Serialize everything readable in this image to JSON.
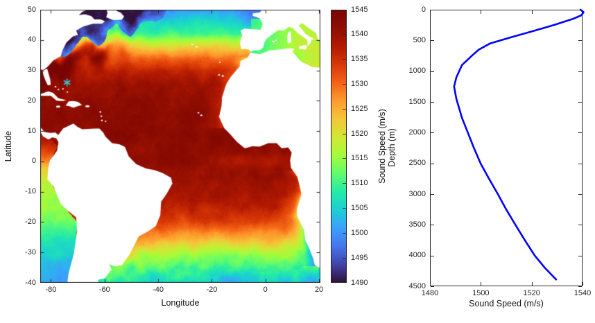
{
  "figure": {
    "background": "#ffffff",
    "axis_color": "#262626",
    "land_color": "#ffffff"
  },
  "chart_data": [
    {
      "type": "heatmap",
      "name": "atlantic-sound-speed-map",
      "xlabel": "Longitude",
      "ylabel": "Latitude",
      "xlim": [
        -84,
        20.5
      ],
      "ylim": [
        -40,
        50
      ],
      "xticks": [
        -80,
        -60,
        -40,
        -20,
        0,
        20
      ],
      "yticks": [
        50,
        40,
        30,
        20,
        10,
        0,
        -10,
        -20,
        -30,
        -40
      ],
      "grid": false,
      "marker": {
        "symbol": "*",
        "color": "#35cbe0",
        "lon": -74,
        "lat": 26
      },
      "colorbar": {
        "label": "Sound Speed (m/s)",
        "min": 1490,
        "max": 1545,
        "ticks": [
          1490,
          1495,
          1500,
          1505,
          1510,
          1515,
          1520,
          1525,
          1530,
          1535,
          1540,
          1545
        ],
        "colormap": "turbo",
        "stops": [
          [
            0.0,
            "#30123B"
          ],
          [
            0.067,
            "#4145AB"
          ],
          [
            0.133,
            "#4675ED"
          ],
          [
            0.2,
            "#39A2FC"
          ],
          [
            0.267,
            "#1BCFD4"
          ],
          [
            0.333,
            "#24EBA6"
          ],
          [
            0.4,
            "#61FC6C"
          ],
          [
            0.467,
            "#A4FC3B"
          ],
          [
            0.533,
            "#D1E834"
          ],
          [
            0.6,
            "#F3C63A"
          ],
          [
            0.667,
            "#FE9B2D"
          ],
          [
            0.733,
            "#F36315"
          ],
          [
            0.8,
            "#D93806"
          ],
          [
            0.867,
            "#B11901"
          ],
          [
            0.933,
            "#8F0D01"
          ],
          [
            1.0,
            "#7A0402"
          ]
        ]
      }
    },
    {
      "type": "line",
      "name": "sound-speed-profile",
      "xlabel": "Sound Speed (m/s)",
      "ylabel": "Depth (m)",
      "xlim": [
        1480,
        1540
      ],
      "ylim": [
        0,
        4500
      ],
      "y_direction": "reverse",
      "xticks": [
        1480,
        1500,
        1520,
        1540
      ],
      "yticks": [
        0,
        500,
        1000,
        1500,
        2000,
        2500,
        3000,
        3500,
        4000,
        4500
      ],
      "grid": false,
      "line_color": "#0000ff",
      "line_width": 2.6,
      "series": [
        {
          "name": "profile",
          "sound_speed_mps": [
            1539.2,
            1540.4,
            1539.6,
            1536.2,
            1528.6,
            1520.4,
            1511.8,
            1503.6,
            1499.2,
            1496.8,
            1492.6,
            1490.4,
            1489.5,
            1490.4,
            1492.6,
            1494.9,
            1497.3,
            1499.9,
            1503.2,
            1506.7,
            1510.0,
            1513.6,
            1517.3,
            1521.2,
            1525.2,
            1529.6
          ],
          "depth_m": [
            0,
            40,
            90,
            150,
            250,
            350,
            450,
            550,
            650,
            736,
            900,
            1100,
            1252,
            1450,
            1760,
            2000,
            2250,
            2500,
            2750,
            3000,
            3250,
            3500,
            3750,
            4000,
            4200,
            4390
          ]
        }
      ]
    }
  ]
}
